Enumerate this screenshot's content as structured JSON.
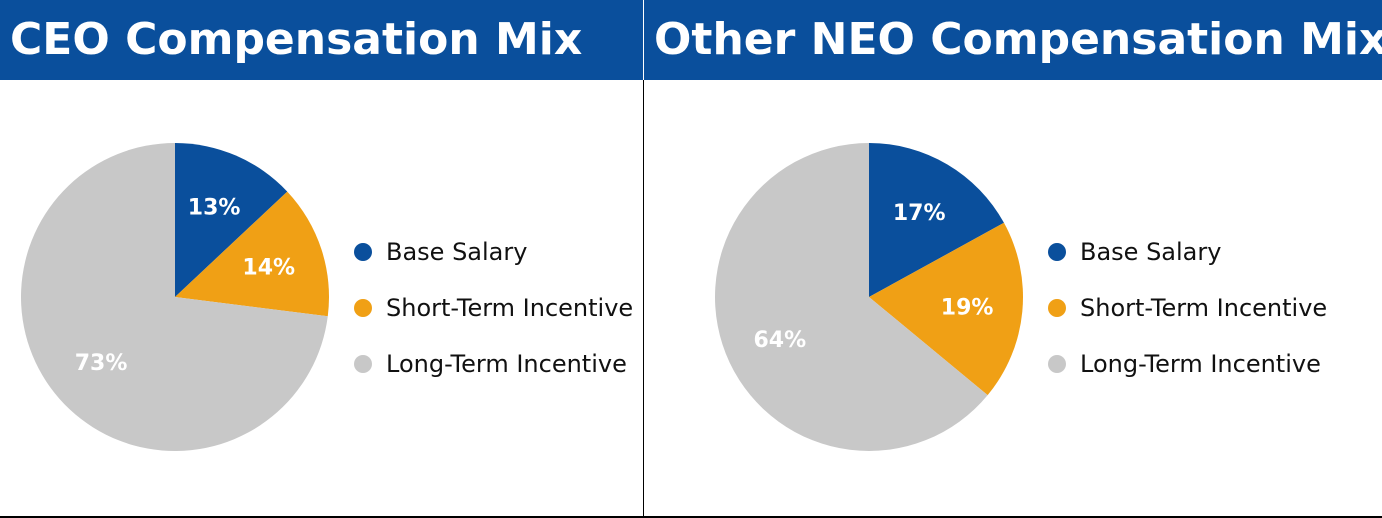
{
  "chart_data": [
    {
      "type": "pie",
      "title": "CEO Compensation Mix",
      "categories": [
        "Base Salary",
        "Short-Term Incentive",
        "Long-Term Incentive"
      ],
      "values": [
        13,
        14,
        73
      ],
      "labels": [
        "13%",
        "14%",
        "73%"
      ],
      "colors": [
        "#0a4f9c",
        "#f0a015",
        "#c8c8c8"
      ],
      "legend_placement": "right"
    },
    {
      "type": "pie",
      "title": "Other NEO Compensation Mix",
      "categories": [
        "Base Salary",
        "Short-Term Incentive",
        "Long-Term Incentive"
      ],
      "values": [
        17,
        19,
        64
      ],
      "labels": [
        "17%",
        "19%",
        "64%"
      ],
      "colors": [
        "#0a4f9c",
        "#f0a015",
        "#c8c8c8"
      ],
      "legend_placement": "right"
    }
  ]
}
